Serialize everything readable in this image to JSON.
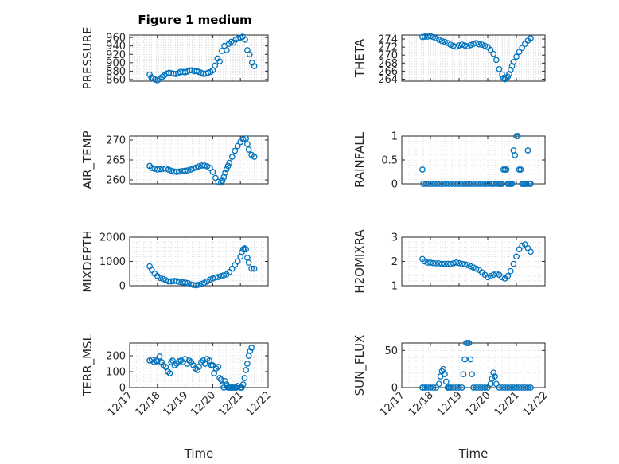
{
  "figure": {
    "title": "Figure 1 medium"
  },
  "chart_data": [
    {
      "type": "scatter",
      "title": "Figure 1 medium",
      "ylabel": "PRESSURE",
      "xlabel": "",
      "ylim": [
        856,
        966
      ],
      "yticks": [
        860,
        880,
        900,
        920,
        940,
        960
      ],
      "grid": true,
      "x": [
        17.72,
        17.78,
        17.85,
        17.92,
        18.0,
        18.08,
        18.17,
        18.25,
        18.33,
        18.42,
        18.5,
        18.58,
        18.67,
        18.75,
        18.83,
        18.92,
        19.0,
        19.08,
        19.17,
        19.25,
        19.33,
        19.42,
        19.5,
        19.58,
        19.67,
        19.75,
        19.83,
        19.92,
        20.0,
        20.08,
        20.17,
        20.25,
        20.33,
        20.42,
        20.5,
        20.58,
        20.67,
        20.75,
        20.83,
        20.92,
        21.0,
        21.08,
        21.17,
        21.25,
        21.33,
        21.42,
        21.5
      ],
      "values": [
        872,
        865,
        862,
        860,
        858,
        861,
        866,
        870,
        874,
        876,
        875,
        874,
        873,
        875,
        878,
        878,
        877,
        879,
        882,
        882,
        880,
        880,
        878,
        876,
        873,
        874,
        876,
        878,
        882,
        893,
        910,
        903,
        928,
        940,
        930,
        945,
        950,
        948,
        955,
        958,
        960,
        962,
        955,
        930,
        920,
        900,
        892
      ]
    },
    {
      "type": "scatter",
      "title": "",
      "ylabel": "THETA",
      "xlabel": "",
      "ylim": [
        263.5,
        275
      ],
      "yticks": [
        264,
        266,
        268,
        270,
        272,
        274
      ],
      "grid": true,
      "x": [
        17.72,
        17.8,
        17.9,
        18.0,
        18.1,
        18.2,
        18.3,
        18.4,
        18.5,
        18.6,
        18.7,
        18.8,
        18.9,
        19.0,
        19.1,
        19.2,
        19.3,
        19.4,
        19.5,
        19.6,
        19.7,
        19.8,
        19.9,
        20.0,
        20.1,
        20.2,
        20.3,
        20.4,
        20.5,
        20.55,
        20.6,
        20.65,
        20.7,
        20.75,
        20.8,
        20.85,
        20.9,
        21.0,
        21.1,
        21.2,
        21.3,
        21.4,
        21.5
      ],
      "values": [
        274.5,
        274.6,
        274.6,
        274.7,
        274.5,
        274.2,
        273.8,
        273.5,
        273.3,
        273.0,
        272.6,
        272.3,
        272.1,
        272.4,
        272.6,
        272.4,
        272.2,
        272.5,
        272.8,
        273.0,
        272.7,
        272.6,
        272.3,
        272.0,
        271.3,
        270.3,
        268.8,
        266.5,
        265.2,
        264.3,
        264.0,
        264.2,
        264.6,
        265.3,
        266.3,
        267.3,
        268.3,
        269.6,
        270.8,
        271.8,
        272.8,
        273.6,
        274.2
      ]
    },
    {
      "type": "scatter",
      "title": "",
      "ylabel": "AIR_TEMP",
      "xlabel": "",
      "ylim": [
        259,
        271
      ],
      "yticks": [
        260,
        265,
        270
      ],
      "grid": true,
      "x": [
        17.72,
        17.8,
        17.9,
        18.0,
        18.1,
        18.2,
        18.3,
        18.4,
        18.5,
        18.6,
        18.7,
        18.8,
        18.9,
        19.0,
        19.1,
        19.2,
        19.3,
        19.4,
        19.5,
        19.6,
        19.7,
        19.8,
        19.9,
        20.0,
        20.1,
        20.2,
        20.3,
        20.35,
        20.4,
        20.45,
        20.5,
        20.55,
        20.6,
        20.7,
        20.8,
        20.9,
        21.0,
        21.1,
        21.2,
        21.25,
        21.3,
        21.4,
        21.5
      ],
      "values": [
        263.5,
        263.0,
        262.8,
        262.6,
        262.7,
        262.8,
        262.9,
        262.6,
        262.3,
        262.1,
        262.0,
        262.1,
        262.2,
        262.3,
        262.4,
        262.6,
        262.9,
        263.1,
        263.4,
        263.6,
        263.6,
        263.4,
        263.0,
        262.0,
        260.5,
        259.5,
        259.3,
        259.8,
        260.7,
        261.8,
        262.7,
        263.5,
        264.3,
        265.8,
        267.3,
        268.5,
        269.5,
        270.2,
        270.4,
        269.0,
        267.6,
        266.3,
        265.8
      ]
    },
    {
      "type": "scatter",
      "title": "",
      "ylabel": "RAINFALL",
      "xlabel": "",
      "ylim": [
        0,
        1
      ],
      "yticks": [
        0,
        0.5,
        1
      ],
      "grid": true,
      "x": [
        17.72,
        17.75,
        17.85,
        17.95,
        18.05,
        18.15,
        18.25,
        18.35,
        18.45,
        18.55,
        18.65,
        18.75,
        18.85,
        18.95,
        19.05,
        19.15,
        19.25,
        19.35,
        19.45,
        19.55,
        19.65,
        19.75,
        19.85,
        19.95,
        20.05,
        20.15,
        20.2,
        20.3,
        20.4,
        20.45,
        20.5,
        20.55,
        20.6,
        20.65,
        20.7,
        20.75,
        20.8,
        20.85,
        20.9,
        20.95,
        21.0,
        21.05,
        21.1,
        21.15,
        21.2,
        21.25,
        21.3,
        21.35,
        21.4,
        21.45,
        21.5
      ],
      "values": [
        0.3,
        0,
        0,
        0,
        0,
        0,
        0,
        0,
        0,
        0,
        0,
        0,
        0,
        0,
        0,
        0,
        0,
        0,
        0,
        0,
        0,
        0,
        0,
        0,
        0,
        0,
        0,
        0,
        0,
        0,
        0,
        0.3,
        0.3,
        0.3,
        0,
        0,
        0,
        0,
        0.7,
        0.6,
        1.0,
        1.0,
        0.3,
        0.3,
        0,
        0,
        0,
        0,
        0.7,
        0,
        0
      ]
    },
    {
      "type": "scatter",
      "title": "",
      "ylabel": "MIXDEPTH",
      "xlabel": "",
      "ylim": [
        0,
        2000
      ],
      "yticks": [
        0,
        1000,
        2000
      ],
      "grid": true,
      "x": [
        17.72,
        17.8,
        17.9,
        18.0,
        18.1,
        18.2,
        18.3,
        18.4,
        18.5,
        18.6,
        18.7,
        18.8,
        18.9,
        19.0,
        19.1,
        19.2,
        19.3,
        19.4,
        19.5,
        19.6,
        19.7,
        19.8,
        19.9,
        20.0,
        20.1,
        20.2,
        20.3,
        20.4,
        20.5,
        20.6,
        20.7,
        20.8,
        20.9,
        21.0,
        21.05,
        21.1,
        21.15,
        21.2,
        21.25,
        21.3,
        21.4,
        21.5
      ],
      "values": [
        800,
        650,
        500,
        400,
        320,
        280,
        230,
        180,
        180,
        200,
        190,
        160,
        140,
        130,
        110,
        60,
        30,
        20,
        40,
        80,
        120,
        180,
        250,
        300,
        340,
        360,
        400,
        430,
        470,
        560,
        700,
        850,
        1000,
        1200,
        1380,
        1500,
        1540,
        1500,
        1150,
        950,
        700,
        700
      ]
    },
    {
      "type": "scatter",
      "title": "",
      "ylabel": "H2OMIXRA",
      "xlabel": "",
      "ylim": [
        1,
        3
      ],
      "yticks": [
        1,
        2,
        3
      ],
      "grid": true,
      "x": [
        17.72,
        17.8,
        17.9,
        18.0,
        18.1,
        18.2,
        18.3,
        18.4,
        18.5,
        18.6,
        18.7,
        18.8,
        18.9,
        19.0,
        19.1,
        19.2,
        19.3,
        19.4,
        19.5,
        19.6,
        19.7,
        19.8,
        19.9,
        20.0,
        20.1,
        20.2,
        20.3,
        20.4,
        20.5,
        20.6,
        20.7,
        20.8,
        20.9,
        21.0,
        21.1,
        21.2,
        21.3,
        21.4,
        21.5
      ],
      "values": [
        2.1,
        2.0,
        1.95,
        1.95,
        1.93,
        1.92,
        1.92,
        1.9,
        1.9,
        1.9,
        1.9,
        1.92,
        1.95,
        1.93,
        1.9,
        1.88,
        1.85,
        1.8,
        1.75,
        1.7,
        1.65,
        1.55,
        1.45,
        1.35,
        1.4,
        1.45,
        1.5,
        1.45,
        1.35,
        1.3,
        1.4,
        1.6,
        1.9,
        2.2,
        2.5,
        2.65,
        2.7,
        2.55,
        2.4
      ]
    },
    {
      "type": "scatter",
      "title": "",
      "ylabel": "TERR_MSL",
      "xlabel": "Time",
      "ylim": [
        0,
        280
      ],
      "yticks": [
        0,
        100,
        200
      ],
      "grid": true,
      "xticklabels": [
        "12/17",
        "12/18",
        "12/19",
        "12/20",
        "12/21",
        "12/22"
      ],
      "x": [
        17.72,
        17.8,
        17.88,
        17.95,
        18.0,
        18.08,
        18.15,
        18.22,
        18.3,
        18.38,
        18.45,
        18.5,
        18.55,
        18.62,
        18.7,
        18.78,
        18.85,
        18.92,
        19.0,
        19.08,
        19.15,
        19.22,
        19.3,
        19.38,
        19.45,
        19.5,
        19.58,
        19.65,
        19.72,
        19.8,
        19.88,
        19.95,
        20.0,
        20.05,
        20.12,
        20.2,
        20.25,
        20.3,
        20.35,
        20.4,
        20.45,
        20.5,
        20.55,
        20.6,
        20.65,
        20.7,
        20.75,
        20.8,
        20.85,
        20.9,
        21.0,
        21.05,
        21.1,
        21.15,
        21.2,
        21.25,
        21.3,
        21.35,
        21.4
      ],
      "values": [
        170,
        175,
        160,
        170,
        165,
        195,
        160,
        140,
        130,
        100,
        90,
        160,
        170,
        140,
        150,
        165,
        170,
        160,
        180,
        150,
        170,
        160,
        140,
        120,
        110,
        130,
        160,
        170,
        150,
        180,
        170,
        140,
        140,
        90,
        120,
        130,
        60,
        50,
        15,
        0,
        40,
        20,
        0,
        0,
        0,
        0,
        0,
        0,
        0,
        10,
        0,
        0,
        20,
        60,
        110,
        150,
        200,
        230,
        250
      ]
    },
    {
      "type": "scatter",
      "title": "",
      "ylabel": "SUN_FLUX",
      "xlabel": "Time",
      "ylim": [
        0,
        60
      ],
      "yticks": [
        0,
        50
      ],
      "grid": true,
      "xticklabels": [
        "12/17",
        "12/18",
        "12/19",
        "12/20",
        "12/21",
        "12/22"
      ],
      "x": [
        17.72,
        17.8,
        17.9,
        18.0,
        18.1,
        18.2,
        18.3,
        18.35,
        18.4,
        18.45,
        18.5,
        18.55,
        18.6,
        18.65,
        18.7,
        18.8,
        18.9,
        19.0,
        19.1,
        19.15,
        19.2,
        19.25,
        19.3,
        19.35,
        19.4,
        19.45,
        19.5,
        19.6,
        19.7,
        19.8,
        19.9,
        20.0,
        20.1,
        20.15,
        20.2,
        20.25,
        20.3,
        20.4,
        20.5,
        20.6,
        20.7,
        20.8,
        20.9,
        21.0,
        21.1,
        21.2,
        21.3,
        21.4,
        21.5
      ],
      "values": [
        0,
        0,
        0,
        0,
        0,
        0,
        5,
        15,
        22,
        25,
        18,
        8,
        0,
        0,
        0,
        0,
        0,
        0,
        0,
        18,
        38,
        60,
        60,
        60,
        38,
        18,
        0,
        0,
        0,
        0,
        0,
        0,
        5,
        12,
        20,
        15,
        5,
        0,
        0,
        0,
        0,
        0,
        0,
        0,
        0,
        0,
        0,
        0,
        0
      ]
    }
  ]
}
